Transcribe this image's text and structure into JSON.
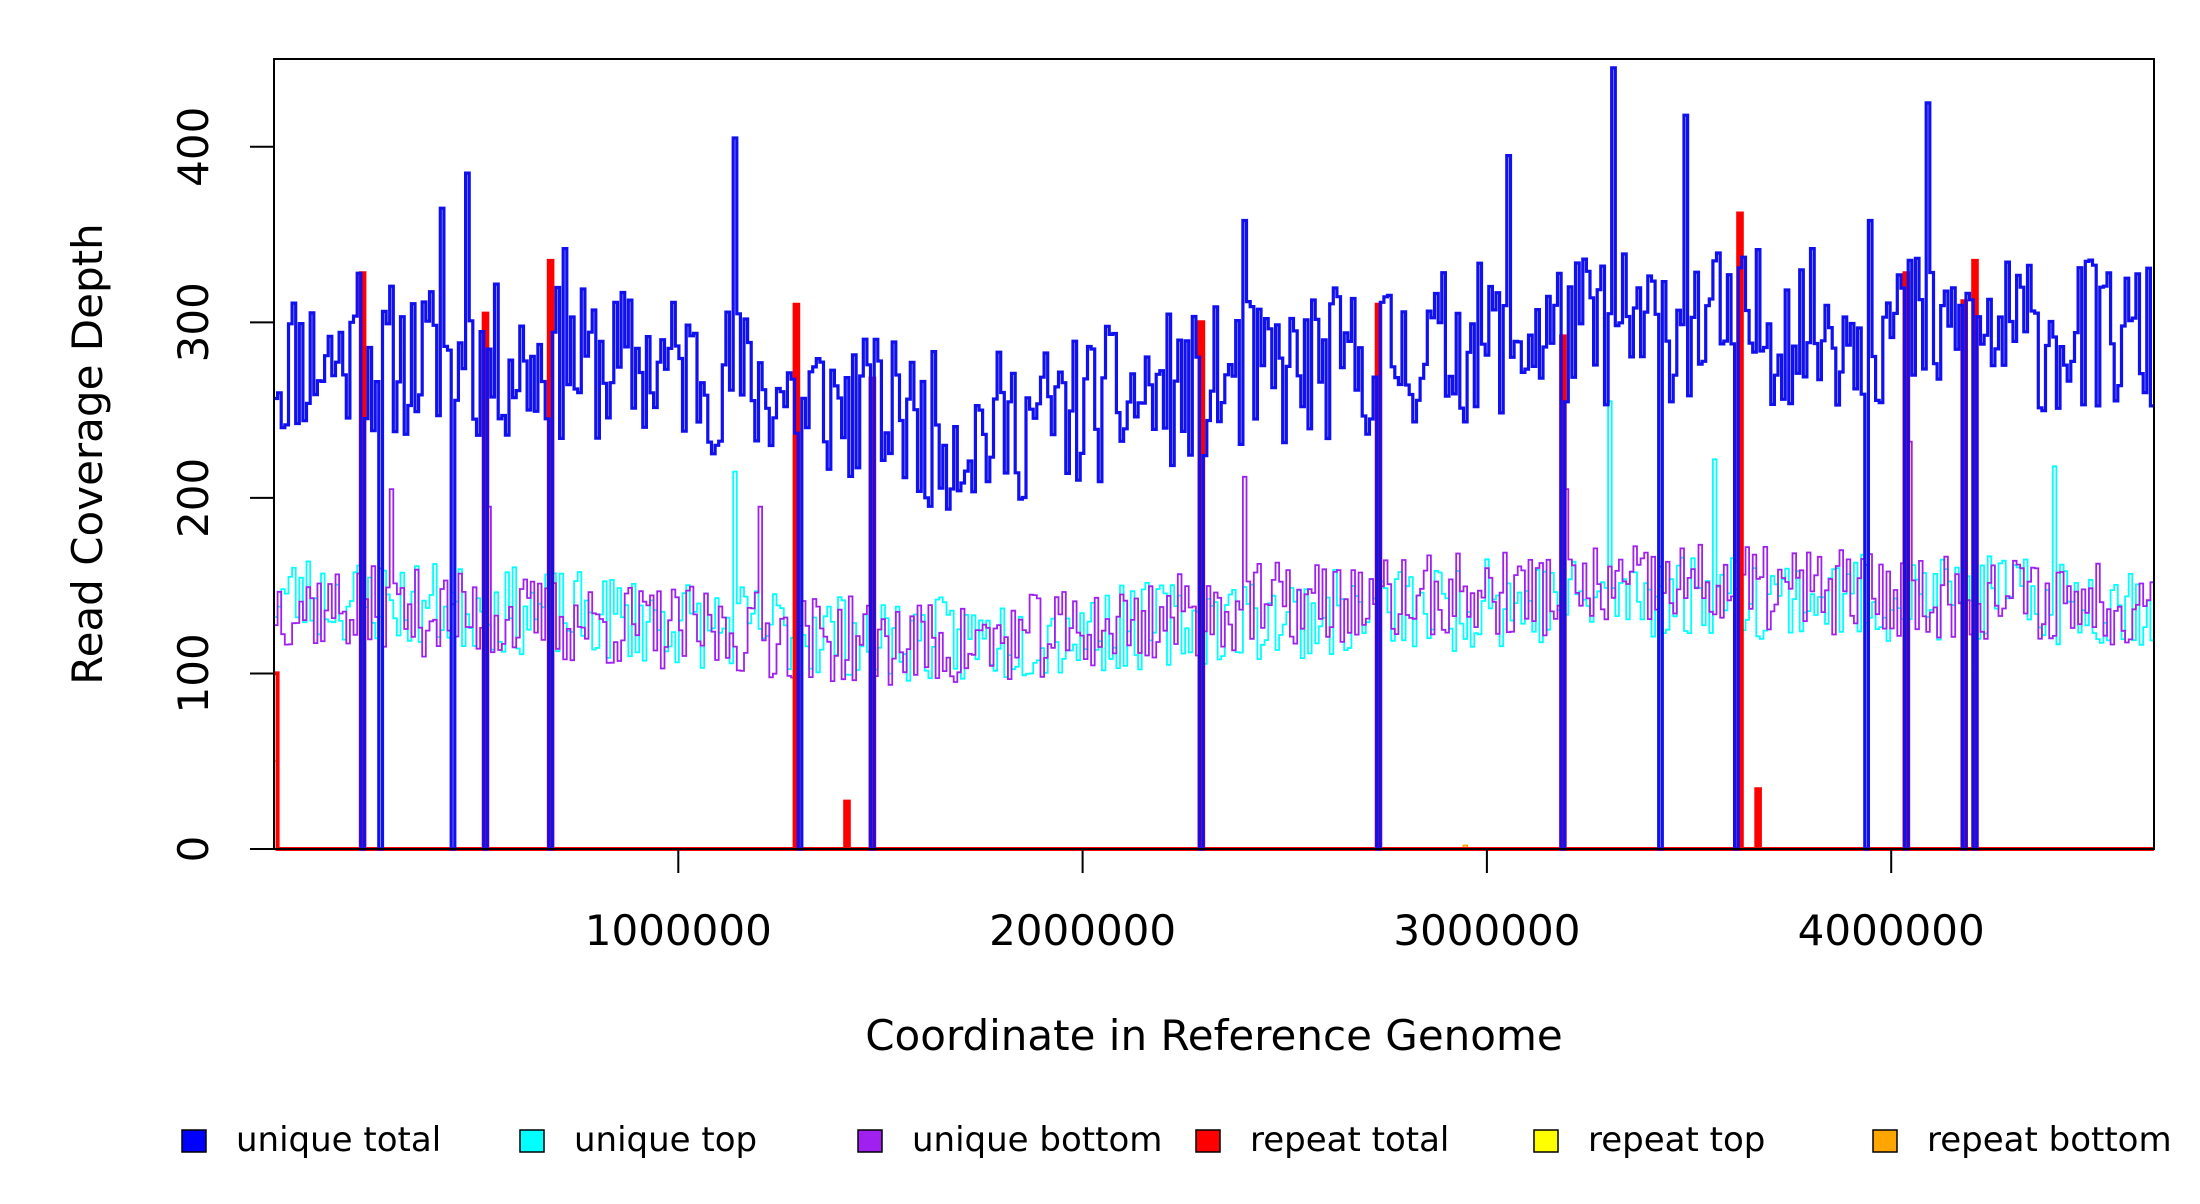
{
  "chart_data": {
    "type": "line",
    "title": "",
    "xlabel": "Coordinate in Reference Genome",
    "ylabel": "Read Coverage Depth",
    "xlim": [
      1,
      4650000
    ],
    "ylim": [
      0,
      450
    ],
    "x_ticks": [
      1000000,
      2000000,
      3000000,
      4000000
    ],
    "x_tick_labels": [
      "1000000",
      "2000000",
      "3000000",
      "4000000"
    ],
    "y_ticks": [
      0,
      100,
      200,
      300,
      400
    ],
    "y_tick_labels": [
      "0",
      "100",
      "200",
      "300",
      "400"
    ],
    "legend_placement": "bottom",
    "grid": false,
    "series": [
      {
        "name": "unique total",
        "color": "#1010F0",
        "baseline": 275,
        "amplitude": 45,
        "seed": 11,
        "trend": [
          [
            0,
            280
          ],
          [
            1000000,
            275
          ],
          [
            1700000,
            235
          ],
          [
            2200000,
            260
          ],
          [
            3000000,
            290
          ],
          [
            3500000,
            300
          ],
          [
            4650000,
            290
          ]
        ],
        "spikes": [
          [
            20000,
            240
          ],
          [
            210000,
            328
          ],
          [
            420000,
            365
          ],
          [
            480000,
            385
          ],
          [
            720000,
            342
          ],
          [
            1140000,
            405
          ],
          [
            1320000,
            240
          ],
          [
            1540000,
            270
          ],
          [
            2400000,
            358
          ],
          [
            3050000,
            395
          ],
          [
            3310000,
            445
          ],
          [
            3490000,
            418
          ],
          [
            3620000,
            362
          ],
          [
            3950000,
            358
          ],
          [
            4090000,
            425
          ],
          [
            4520000,
            320
          ]
        ],
        "dropouts": [
          220000,
          265000,
          445000,
          525000,
          685000,
          1300000,
          1480000,
          2290000,
          2730000,
          3190000,
          3430000,
          3620000,
          3940000,
          4040000,
          4180000,
          4210000
        ]
      },
      {
        "name": "unique top",
        "color": "#00FFFF",
        "baseline": 138,
        "amplitude": 25,
        "seed": 23,
        "trend": [
          [
            0,
            145
          ],
          [
            1700000,
            118
          ],
          [
            2300000,
            130
          ],
          [
            3500000,
            145
          ],
          [
            4650000,
            140
          ]
        ],
        "spikes": [
          [
            1140000,
            215
          ],
          [
            3000000,
            165
          ],
          [
            3300000,
            255
          ],
          [
            3560000,
            222
          ],
          [
            4400000,
            218
          ]
        ],
        "dropouts": []
      },
      {
        "name": "unique bottom",
        "color": "#A020F0",
        "baseline": 135,
        "amplitude": 25,
        "seed": 37,
        "trend": [
          [
            0,
            140
          ],
          [
            1700000,
            115
          ],
          [
            2400000,
            138
          ],
          [
            3500000,
            150
          ],
          [
            4650000,
            140
          ]
        ],
        "spikes": [
          [
            290000,
            205
          ],
          [
            530000,
            195
          ],
          [
            1200000,
            195
          ],
          [
            2400000,
            212
          ],
          [
            3200000,
            205
          ],
          [
            4050000,
            232
          ]
        ],
        "dropouts": []
      },
      {
        "name": "repeat total",
        "color": "#FF0000",
        "baseline": 0,
        "amplitude": 0,
        "seed": 0,
        "trend": [],
        "spikes": [
          [
            8000,
            100
          ],
          [
            215000,
            328
          ],
          [
            520000,
            305
          ],
          [
            685000,
            335
          ],
          [
            1295000,
            310
          ],
          [
            1420000,
            27
          ],
          [
            1480000,
            268
          ],
          [
            2290000,
            300
          ],
          [
            2730000,
            310
          ],
          [
            3190000,
            292
          ],
          [
            3625000,
            362
          ],
          [
            3670000,
            34
          ],
          [
            4040000,
            328
          ],
          [
            4180000,
            312
          ],
          [
            4210000,
            335
          ]
        ],
        "dropouts": []
      },
      {
        "name": "repeat top",
        "color": "#FFFF00",
        "baseline": 0,
        "amplitude": 0,
        "seed": 0,
        "trend": [],
        "spikes": [],
        "dropouts": []
      },
      {
        "name": "repeat bottom",
        "color": "#FFA500",
        "baseline": 0,
        "amplitude": 0,
        "seed": 0,
        "trend": [],
        "spikes": [
          [
            8000,
            50
          ],
          [
            1420000,
            14
          ],
          [
            2950000,
            2
          ],
          [
            3670000,
            20
          ]
        ],
        "dropouts": []
      }
    ],
    "legend": [
      {
        "label": "unique total",
        "color": "#0000FF"
      },
      {
        "label": "unique top",
        "color": "#00FFFF"
      },
      {
        "label": "unique bottom",
        "color": "#A020F0"
      },
      {
        "label": "repeat total",
        "color": "#FF0000"
      },
      {
        "label": "repeat top",
        "color": "#FFFF00"
      },
      {
        "label": "repeat bottom",
        "color": "#FFA500"
      }
    ]
  }
}
